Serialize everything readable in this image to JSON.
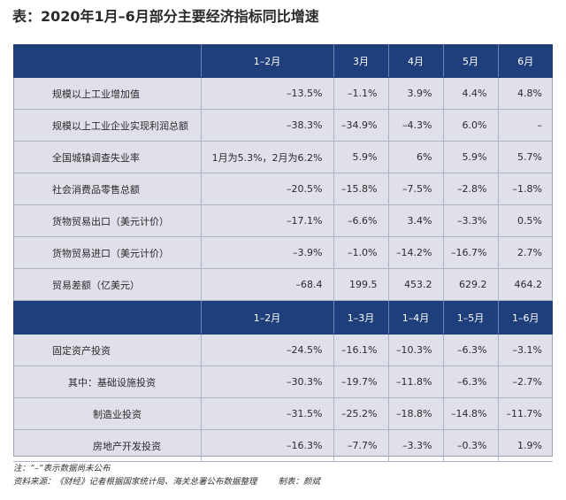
{
  "title": "表：2020年1月–6月部分主要经济指标同比增速",
  "header1": [
    "",
    "1–2月",
    "3月",
    "4月",
    "5月",
    "6月"
  ],
  "rows1": [
    {
      "label": "规模以上工业增加值",
      "values": [
        "–13.5%",
        "–1.1%",
        "3.9%",
        "4.4%",
        "4.8%"
      ]
    },
    {
      "label": "规模以上工业企业实现利润总额",
      "values": [
        "–38.3%",
        "–34.9%",
        "–4.3%",
        "6.0%",
        "–"
      ]
    },
    {
      "label": "全国城镇调查失业率",
      "values": [
        "1月为5.3%，2月为6.2%",
        "5.9%",
        "6%",
        "5.9%",
        "5.7%"
      ]
    },
    {
      "label": "社会消费品零售总额",
      "values": [
        "–20.5%",
        "–15.8%",
        "–7.5%",
        "–2.8%",
        "–1.8%"
      ]
    },
    {
      "label": "货物贸易出口（美元计价）",
      "values": [
        "–17.1%",
        "–6.6%",
        "3.4%",
        "–3.3%",
        "0.5%"
      ]
    },
    {
      "label": "货物贸易进口（美元计价）",
      "values": [
        "–3.9%",
        "–1.0%",
        "–14.2%",
        "–16.7%",
        "2.7%"
      ]
    },
    {
      "label": "贸易差额（亿美元）",
      "values": [
        "–68.4",
        "199.5",
        "453.2",
        "629.2",
        "464.2"
      ]
    }
  ],
  "header2": [
    "",
    "1–2月",
    "1–3月",
    "1–4月",
    "1–5月",
    "1–6月"
  ],
  "rows2": [
    {
      "label": "固定资产投资",
      "values": [
        "–24.5%",
        "–16.1%",
        "–10.3%",
        "–6.3%",
        "–3.1%"
      ]
    },
    {
      "label": "其中：基础设施投资",
      "values": [
        "–30.3%",
        "–19.7%",
        "–11.8%",
        "–6.3%",
        "–2.7%"
      ]
    },
    {
      "label": "制造业投资",
      "values": [
        "–31.5%",
        "–25.2%",
        "–18.8%",
        "–14.8%",
        "–11.7%"
      ]
    },
    {
      "label": "房地产开发投资",
      "values": [
        "–16.3%",
        "–7.7%",
        "–3.3%",
        "–0.3%",
        "1.9%"
      ]
    }
  ],
  "notes": {
    "note": "注：“–”表示数据尚未公布",
    "source": "资料来源：《财经》记者根据国家统计局、海关总署公布数据整理",
    "credit": "制表：颜斌"
  },
  "colors": {
    "header_bg": "#1e3f7c",
    "body_bg": "#dfe0ea"
  }
}
